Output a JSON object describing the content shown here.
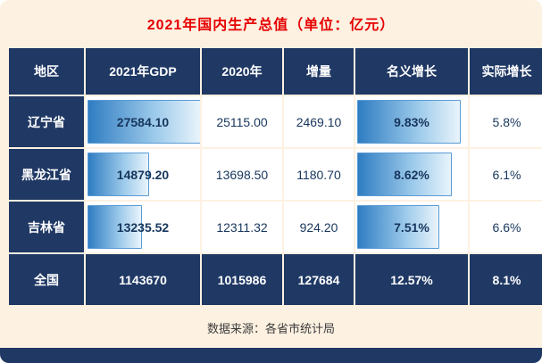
{
  "title": "2021年国内生产总值（单位：亿元）",
  "footer": {
    "source": "数据来源：各省市统计局"
  },
  "colors": {
    "navy": "#1f3864",
    "cream_background": "#fdf1e2",
    "title_red": "#e60000",
    "bar_blue": "#2f7dc2",
    "cell_text_navy": "#17365d"
  },
  "table": {
    "headers": [
      "地区",
      "2021年GDP",
      "2020年",
      "增量",
      "名义增长",
      "实际增长"
    ],
    "rows": [
      {
        "region": "辽宁省",
        "gdp2021": "27584.10",
        "gdp2020": "25115.00",
        "increment": "2469.10",
        "nominal": "9.83%",
        "real": "5.8%",
        "gdp_bar_pct": 100,
        "nominal_bar_pct": 92
      },
      {
        "region": "黑龙江省",
        "gdp2021": "14879.20",
        "gdp2020": "13698.50",
        "increment": "1180.70",
        "nominal": "8.62%",
        "real": "6.1%",
        "gdp_bar_pct": 54,
        "nominal_bar_pct": 84
      },
      {
        "region": "吉林省",
        "gdp2021": "13235.52",
        "gdp2020": "12311.32",
        "increment": "924.20",
        "nominal": "7.51%",
        "real": "6.6%",
        "gdp_bar_pct": 48,
        "nominal_bar_pct": 73
      }
    ],
    "total_row": {
      "region": "全国",
      "gdp2021": "1143670",
      "gdp2020": "1015986",
      "increment": "127684",
      "nominal": "12.57%",
      "real": "8.1%"
    }
  },
  "chart_data": {
    "type": "table",
    "title": "2021年国内生产总值（单位：亿元）",
    "columns": [
      "地区",
      "2021年GDP",
      "2020年",
      "增量",
      "名义增长",
      "实际增长"
    ],
    "rows": [
      [
        "辽宁省",
        27584.1,
        25115.0,
        2469.1,
        "9.83%",
        "5.8%"
      ],
      [
        "黑龙江省",
        14879.2,
        13698.5,
        1180.7,
        "8.62%",
        "6.1%"
      ],
      [
        "吉林省",
        13235.52,
        12311.32,
        924.2,
        "7.51%",
        "6.6%"
      ],
      [
        "全国",
        1143670,
        1015986,
        127684,
        "12.57%",
        "8.1%"
      ]
    ],
    "layout_hints": {
      "data_bars_columns": [
        "2021年GDP",
        "名义增长"
      ],
      "highlight_row": "全国"
    },
    "note": "数据来源：各省市统计局"
  }
}
